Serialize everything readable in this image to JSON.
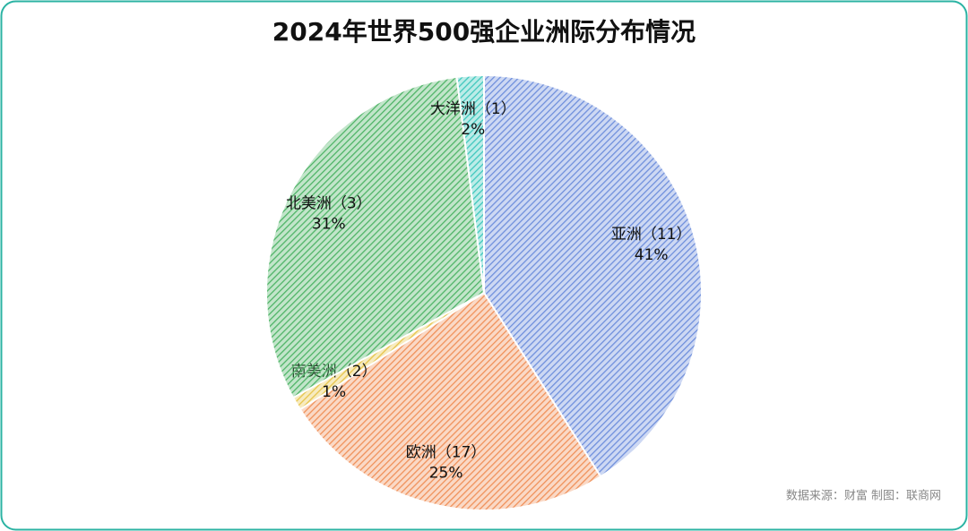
{
  "chart_data": {
    "type": "pie",
    "title": "2024年世界500强企业洲际分布情况",
    "categories": [
      "亚洲（11）",
      "欧洲（17）",
      "南美洲（2）",
      "北美洲（3）",
      "大洋洲（1）"
    ],
    "values": [
      41,
      25,
      1,
      31,
      2
    ],
    "value_labels": [
      "41%",
      "25%",
      "1%",
      "31%",
      "2%"
    ],
    "colors": [
      "#6f8fdc",
      "#f0915a",
      "#e6c44a",
      "#4fb467",
      "#3fc7bd"
    ],
    "source": "数据来源：财富  制图：联商网"
  }
}
